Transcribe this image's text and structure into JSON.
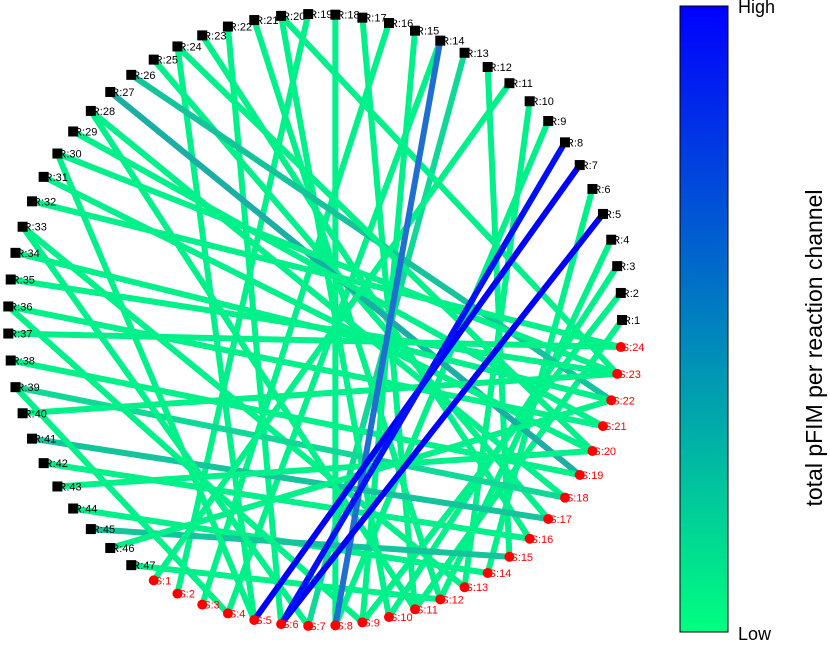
{
  "network": {
    "reactions": [
      "R:1",
      "R:2",
      "R:3",
      "R:4",
      "R:5",
      "R:6",
      "R:7",
      "R:8",
      "R:9",
      "R:10",
      "R:11",
      "R:12",
      "R:13",
      "R:14",
      "R:15",
      "R:16",
      "R:17",
      "R:18",
      "R:19",
      "R:20",
      "R:21",
      "R:22",
      "R:23",
      "R:24",
      "R:25",
      "R:26",
      "R:27",
      "R:28",
      "R:29",
      "R:30",
      "R:31",
      "R:32",
      "R:33",
      "R:34",
      "R:35",
      "R:36",
      "R:37",
      "R:38",
      "R:39",
      "R:40",
      "R:41",
      "R:42",
      "R:43",
      "R:44",
      "R:45",
      "R:46",
      "R:47"
    ],
    "species": [
      "S:1",
      "S:2",
      "S:3",
      "S:4",
      "S:5",
      "S:6",
      "S:7",
      "S:8",
      "S:9",
      "S:10",
      "S:11",
      "S:12",
      "S:13",
      "S:14",
      "S:15",
      "S:16",
      "S:17",
      "S:18",
      "S:19",
      "S:20",
      "S:21",
      "S:22",
      "S:23",
      "S:24"
    ],
    "reaction_color": "#000000",
    "species_color": "#ff0000",
    "edges": [
      {
        "source": "R:1",
        "target": "S:11",
        "color": "#00f08a"
      },
      {
        "source": "R:2",
        "target": "S:9",
        "color": "#00f08a"
      },
      {
        "source": "R:3",
        "target": "S:10",
        "color": "#00f08a"
      },
      {
        "source": "R:4",
        "target": "S:12",
        "color": "#00f08a"
      },
      {
        "source": "R:6",
        "target": "S:14",
        "color": "#00f08a"
      },
      {
        "source": "R:9",
        "target": "S:8",
        "color": "#00f08a"
      },
      {
        "source": "R:10",
        "target": "S:13",
        "color": "#00f08a"
      },
      {
        "source": "R:12",
        "target": "S:15",
        "color": "#00f08a"
      },
      {
        "source": "R:13",
        "target": "S:7",
        "color": "#10d896"
      },
      {
        "source": "R:14",
        "target": "S:4",
        "color": "#00f08a"
      },
      {
        "source": "R:15",
        "target": "S:9",
        "color": "#00f08a"
      },
      {
        "source": "R:16",
        "target": "S:3",
        "color": "#00f08a"
      },
      {
        "source": "R:17",
        "target": "S:11",
        "color": "#00f08a"
      },
      {
        "source": "R:18",
        "target": "S:8",
        "color": "#00f08a"
      },
      {
        "source": "R:19",
        "target": "S:2",
        "color": "#00f08a"
      },
      {
        "source": "R:20",
        "target": "S:10",
        "color": "#00f08a"
      },
      {
        "source": "R:21",
        "target": "S:12",
        "color": "#00f08a"
      },
      {
        "source": "R:22",
        "target": "S:6",
        "color": "#00f08a"
      },
      {
        "source": "R:23",
        "target": "S:16",
        "color": "#00f08a"
      },
      {
        "source": "R:24",
        "target": "S:5",
        "color": "#00f08a"
      },
      {
        "source": "R:25",
        "target": "S:17",
        "color": "#00f08a"
      },
      {
        "source": "R:26",
        "target": "S:22",
        "color": "#14c49a"
      },
      {
        "source": "R:27",
        "target": "S:19",
        "color": "#1aaea4"
      },
      {
        "source": "R:28",
        "target": "S:18",
        "color": "#00f08a"
      },
      {
        "source": "R:29",
        "target": "S:21",
        "color": "#00f08a"
      },
      {
        "source": "R:30",
        "target": "S:23",
        "color": "#00f08a"
      },
      {
        "source": "R:31",
        "target": "S:20",
        "color": "#00f08a"
      },
      {
        "source": "R:32",
        "target": "S:24",
        "color": "#00f08a"
      },
      {
        "source": "R:33",
        "target": "S:13",
        "color": "#00f08a"
      },
      {
        "source": "R:34",
        "target": "S:22",
        "color": "#00f08a"
      },
      {
        "source": "R:35",
        "target": "S:23",
        "color": "#00f08a"
      },
      {
        "source": "R:36",
        "target": "S:21",
        "color": "#00f08a"
      },
      {
        "source": "R:37",
        "target": "S:24",
        "color": "#00f08a"
      },
      {
        "source": "R:38",
        "target": "S:19",
        "color": "#00f08a"
      },
      {
        "source": "R:39",
        "target": "S:18",
        "color": "#10d896"
      },
      {
        "source": "R:40",
        "target": "S:23",
        "color": "#00f08a"
      },
      {
        "source": "R:41",
        "target": "S:17",
        "color": "#14c49a"
      },
      {
        "source": "R:42",
        "target": "S:16",
        "color": "#00f08a"
      },
      {
        "source": "R:43",
        "target": "S:20",
        "color": "#00f08a"
      },
      {
        "source": "R:44",
        "target": "S:14",
        "color": "#00f08a"
      },
      {
        "source": "R:45",
        "target": "S:15",
        "color": "#14c49a"
      },
      {
        "source": "R:46",
        "target": "S:22",
        "color": "#00f08a"
      },
      {
        "source": "R:47",
        "target": "S:12",
        "color": "#00f08a"
      },
      {
        "source": "R:30",
        "target": "S:5",
        "color": "#00f08a"
      },
      {
        "source": "R:33",
        "target": "S:7",
        "color": "#00f08a"
      },
      {
        "source": "R:36",
        "target": "S:9",
        "color": "#00f08a"
      },
      {
        "source": "R:39",
        "target": "S:4",
        "color": "#00f08a"
      },
      {
        "source": "R:20",
        "target": "S:23",
        "color": "#00f08a"
      },
      {
        "source": "R:11",
        "target": "S:1",
        "color": "#00f08a"
      },
      {
        "source": "R:28",
        "target": "S:11",
        "color": "#00f08a"
      },
      {
        "source": "R:24",
        "target": "S:20",
        "color": "#00f08a"
      },
      {
        "source": "R:14",
        "target": "S:8",
        "color": "#1f6fd0"
      },
      {
        "source": "R:5",
        "target": "S:6",
        "color": "#0000ff"
      },
      {
        "source": "R:7",
        "target": "S:5",
        "color": "#0000ff"
      },
      {
        "source": "R:8",
        "target": "S:6",
        "color": "#0010f8"
      }
    ]
  },
  "colorbar": {
    "top_label": "High",
    "bottom_label": "Low",
    "axis_label": "total pFIM per reaction channel",
    "top_color": "#0000ff",
    "bottom_color": "#00ff80"
  }
}
